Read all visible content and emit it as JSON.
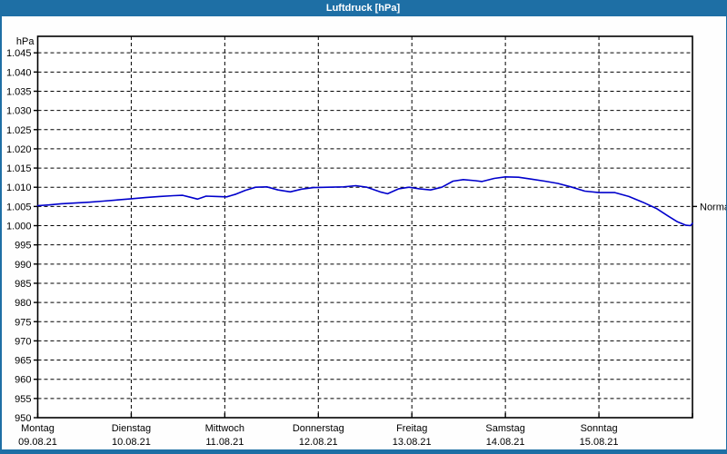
{
  "window": {
    "title": "Luftdruck [hPa]"
  },
  "colors": {
    "titlebar": "#1e6fa5",
    "window_border": "#1e6fa5",
    "line": "#0000cc",
    "grid": "#000000",
    "plot_background": "#ffffff",
    "text": "#000000"
  },
  "chart_data": {
    "type": "line",
    "title": "Luftdruck [hPa]",
    "y_axis_unit": "hPa",
    "ylim": [
      950,
      1049.3
    ],
    "x_range_days": [
      0,
      7
    ],
    "grid": "dashed",
    "legend": "none",
    "y_ticks": [
      {
        "value": 1045,
        "label": "1.045"
      },
      {
        "value": 1040,
        "label": "1.040"
      },
      {
        "value": 1035,
        "label": "1.035"
      },
      {
        "value": 1030,
        "label": "1.030"
      },
      {
        "value": 1025,
        "label": "1.025"
      },
      {
        "value": 1020,
        "label": "1.020"
      },
      {
        "value": 1015,
        "label": "1.015"
      },
      {
        "value": 1010,
        "label": "1.010"
      },
      {
        "value": 1005,
        "label": "1.005"
      },
      {
        "value": 1000,
        "label": "1.000"
      },
      {
        "value": 995,
        "label": "995"
      },
      {
        "value": 990,
        "label": "990"
      },
      {
        "value": 985,
        "label": "985"
      },
      {
        "value": 980,
        "label": "980"
      },
      {
        "value": 975,
        "label": "975"
      },
      {
        "value": 970,
        "label": "970"
      },
      {
        "value": 965,
        "label": "965"
      },
      {
        "value": 960,
        "label": "960"
      },
      {
        "value": 955,
        "label": "955"
      },
      {
        "value": 950,
        "label": "950"
      }
    ],
    "x_days": [
      {
        "t": 0,
        "name": "Montag",
        "date": "09.08.21"
      },
      {
        "t": 1,
        "name": "Dienstag",
        "date": "10.08.21"
      },
      {
        "t": 2,
        "name": "Mittwoch",
        "date": "11.08.21"
      },
      {
        "t": 3,
        "name": "Donnerstag",
        "date": "12.08.21"
      },
      {
        "t": 4,
        "name": "Freitag",
        "date": "13.08.21"
      },
      {
        "t": 5,
        "name": "Samstag",
        "date": "14.08.21"
      },
      {
        "t": 6,
        "name": "Sonntag",
        "date": "15.08.21"
      }
    ],
    "annotation": {
      "label": "Normal",
      "value": 1005,
      "side": "right"
    },
    "series": [
      {
        "name": "Luftdruck",
        "color": "#0000cc",
        "points": [
          [
            0.0,
            1005.2
          ],
          [
            0.12,
            1005.4
          ],
          [
            0.25,
            1005.7
          ],
          [
            0.4,
            1005.9
          ],
          [
            0.55,
            1006.1
          ],
          [
            0.7,
            1006.4
          ],
          [
            0.85,
            1006.7
          ],
          [
            1.0,
            1007.0
          ],
          [
            1.15,
            1007.3
          ],
          [
            1.3,
            1007.6
          ],
          [
            1.45,
            1007.8
          ],
          [
            1.55,
            1007.9
          ],
          [
            1.63,
            1007.4
          ],
          [
            1.71,
            1006.9
          ],
          [
            1.8,
            1007.7
          ],
          [
            1.92,
            1007.6
          ],
          [
            2.02,
            1007.5
          ],
          [
            2.12,
            1008.2
          ],
          [
            2.22,
            1009.2
          ],
          [
            2.33,
            1010.0
          ],
          [
            2.45,
            1010.1
          ],
          [
            2.57,
            1009.3
          ],
          [
            2.7,
            1008.8
          ],
          [
            2.82,
            1009.5
          ],
          [
            2.95,
            1009.9
          ],
          [
            3.1,
            1010.0
          ],
          [
            3.27,
            1010.1
          ],
          [
            3.4,
            1010.4
          ],
          [
            3.52,
            1010.0
          ],
          [
            3.66,
            1008.8
          ],
          [
            3.74,
            1008.3
          ],
          [
            3.86,
            1009.6
          ],
          [
            3.97,
            1010.0
          ],
          [
            4.08,
            1009.6
          ],
          [
            4.2,
            1009.3
          ],
          [
            4.32,
            1010.0
          ],
          [
            4.44,
            1011.6
          ],
          [
            4.55,
            1012.0
          ],
          [
            4.68,
            1011.7
          ],
          [
            4.75,
            1011.5
          ],
          [
            4.88,
            1012.3
          ],
          [
            5.0,
            1012.7
          ],
          [
            5.14,
            1012.6
          ],
          [
            5.28,
            1012.1
          ],
          [
            5.42,
            1011.6
          ],
          [
            5.56,
            1011.0
          ],
          [
            5.7,
            1010.1
          ],
          [
            5.85,
            1009.0
          ],
          [
            6.0,
            1008.6
          ],
          [
            6.17,
            1008.6
          ],
          [
            6.32,
            1007.6
          ],
          [
            6.47,
            1006.1
          ],
          [
            6.62,
            1004.4
          ],
          [
            6.74,
            1002.5
          ],
          [
            6.84,
            1001.0
          ],
          [
            6.93,
            1000.1
          ],
          [
            6.98,
            1000.0
          ],
          [
            7.0,
            1000.6
          ]
        ]
      }
    ]
  }
}
